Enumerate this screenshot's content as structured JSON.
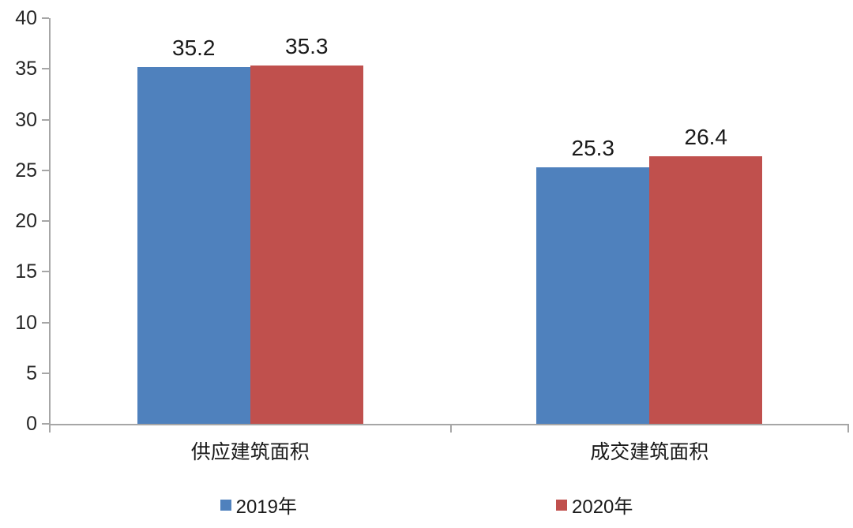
{
  "chart_data": {
    "type": "bar",
    "categories": [
      "供应建筑面积",
      "成交建筑面积"
    ],
    "series": [
      {
        "name": "2019年",
        "color": "#4F81BD",
        "values": [
          35.2,
          25.3
        ],
        "data_labels": [
          "35.2",
          "25.3"
        ]
      },
      {
        "name": "2020年",
        "color": "#C0504D",
        "values": [
          35.3,
          26.4
        ],
        "data_labels": [
          "35.3",
          "26.4"
        ]
      }
    ],
    "title": "",
    "xlabel": "",
    "ylabel": "",
    "ylim": [
      0,
      40
    ],
    "ytick_step": 5,
    "ytick_labels": [
      "0",
      "5",
      "10",
      "15",
      "20",
      "25",
      "30",
      "35",
      "40"
    ],
    "grid": false,
    "legend_position": "bottom",
    "axis_color": "#a6a6a6",
    "text_color": "#1a1a1a",
    "background_color": "#ffffff"
  }
}
